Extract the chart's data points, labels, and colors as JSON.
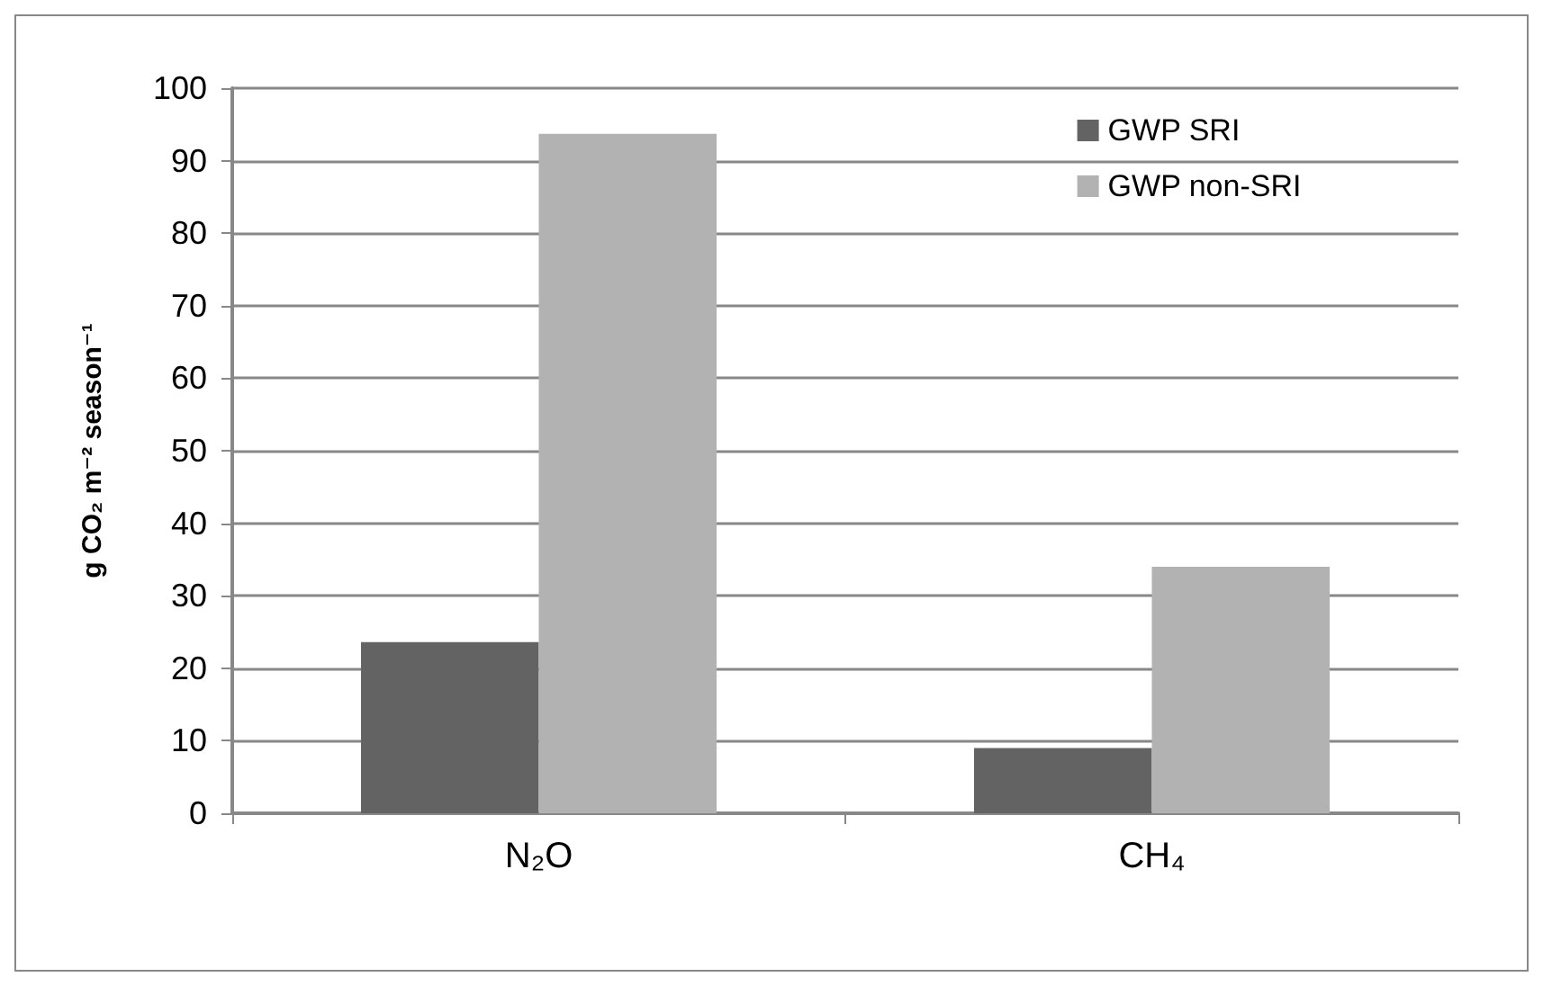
{
  "chart_data": {
    "type": "bar",
    "ylabel": "g CO₂ m⁻² season⁻¹",
    "categories": [
      "N₂O",
      "CH₄"
    ],
    "series": [
      {
        "name": "GWP SRI",
        "color": "#636363",
        "values": [
          23.6,
          9
        ]
      },
      {
        "name": "GWP non-SRI",
        "color": "#b2b2b2",
        "values": [
          93.7,
          34
        ]
      }
    ],
    "ylim": [
      0,
      100
    ],
    "yticks": [
      0,
      10,
      20,
      30,
      40,
      50,
      60,
      70,
      80,
      90,
      100
    ],
    "grid": "y",
    "legend": "top right"
  }
}
